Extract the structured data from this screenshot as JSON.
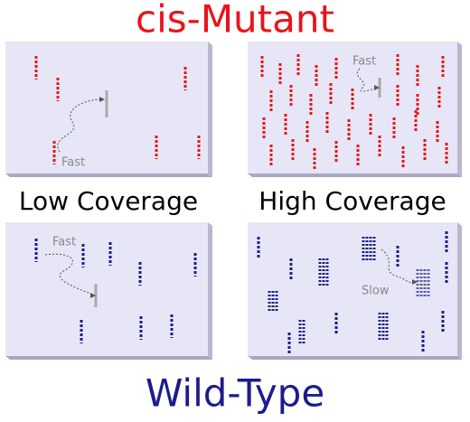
{
  "title_top": "cis-Mutant",
  "row_labels": [
    "Low Coverage",
    "High Coverage"
  ],
  "title_bottom": "Wild-Type",
  "panels": [
    {
      "annotation": "Fast"
    },
    {
      "annotation": "Fast"
    },
    {
      "annotation": "Fast"
    },
    {
      "annotation": "Slow"
    }
  ]
}
